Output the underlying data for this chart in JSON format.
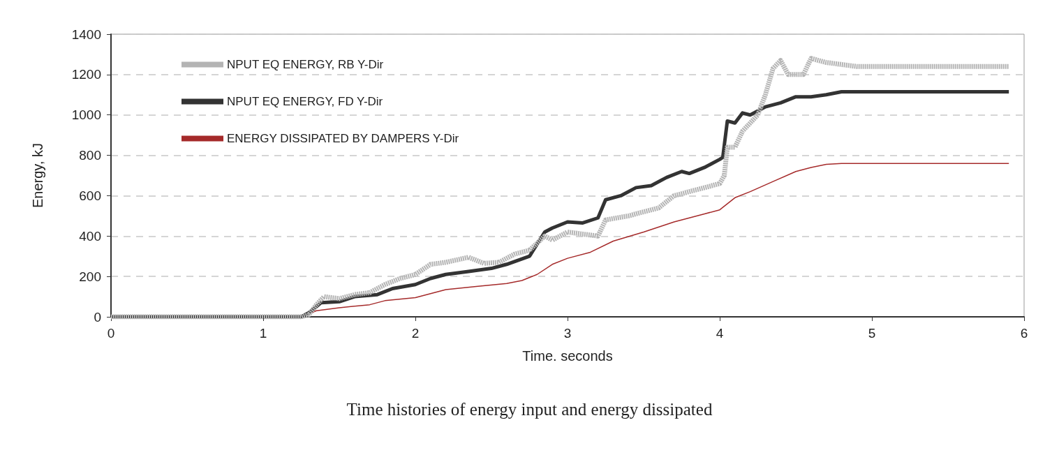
{
  "chart_data": {
    "type": "line",
    "title": "Time histories of energy input and energy dissipated",
    "xlabel": "Time. seconds",
    "ylabel": "Energy, kJ",
    "xlim": [
      0,
      6
    ],
    "xticks": [
      0,
      1,
      2,
      3,
      4,
      5,
      6
    ],
    "ylim": [
      0,
      1400
    ],
    "yticks": [
      0,
      200,
      400,
      600,
      800,
      1000,
      1200,
      1400
    ],
    "grid": "y",
    "legend": "top left",
    "marker": "none",
    "line_style": "solid",
    "series": [
      {
        "name": "NPUT EQ ENERGY, RB Y-Dir",
        "color": "#b4b4b4",
        "line_style": "dotted",
        "x": [
          0,
          1.25,
          1.3,
          1.35,
          1.4,
          1.5,
          1.6,
          1.7,
          1.8,
          1.9,
          2.0,
          2.1,
          2.2,
          2.35,
          2.45,
          2.55,
          2.65,
          2.75,
          2.85,
          2.9,
          3.0,
          3.1,
          3.2,
          3.25,
          3.4,
          3.5,
          3.6,
          3.7,
          3.8,
          3.9,
          4.0,
          4.03,
          4.05,
          4.1,
          4.15,
          4.2,
          4.25,
          4.3,
          4.35,
          4.4,
          4.45,
          4.55,
          4.6,
          4.7,
          4.8,
          4.9,
          5.9
        ],
        "values": [
          0,
          0,
          10,
          60,
          100,
          90,
          110,
          120,
          160,
          190,
          210,
          260,
          270,
          295,
          265,
          270,
          310,
          330,
          400,
          380,
          420,
          410,
          400,
          480,
          500,
          520,
          540,
          600,
          620,
          640,
          660,
          700,
          840,
          840,
          920,
          960,
          1000,
          1100,
          1230,
          1270,
          1200,
          1200,
          1280,
          1260,
          1250,
          1240,
          1240
        ]
      },
      {
        "name": "NPUT EQ ENERGY, FD Y-Dir",
        "color": "#333333",
        "x": [
          0,
          1.25,
          1.3,
          1.38,
          1.5,
          1.6,
          1.75,
          1.85,
          2.0,
          2.1,
          2.2,
          2.35,
          2.5,
          2.6,
          2.75,
          2.85,
          2.9,
          3.0,
          3.1,
          3.2,
          3.25,
          3.35,
          3.45,
          3.55,
          3.65,
          3.75,
          3.8,
          3.9,
          4.0,
          4.02,
          4.05,
          4.1,
          4.15,
          4.2,
          4.3,
          4.4,
          4.5,
          4.6,
          4.7,
          4.8,
          5.9
        ],
        "values": [
          0,
          0,
          20,
          70,
          75,
          100,
          110,
          140,
          160,
          190,
          210,
          225,
          240,
          260,
          300,
          420,
          440,
          470,
          465,
          490,
          580,
          600,
          640,
          650,
          690,
          720,
          710,
          740,
          780,
          790,
          970,
          960,
          1010,
          1000,
          1040,
          1060,
          1090,
          1090,
          1100,
          1115,
          1115
        ]
      },
      {
        "name": "ENERGY DISSIPATED BY DAMPERS Y-Dir",
        "color": "#a52a2a",
        "x": [
          0,
          1.25,
          1.35,
          1.5,
          1.7,
          1.8,
          2.0,
          2.2,
          2.4,
          2.6,
          2.7,
          2.8,
          2.9,
          3.0,
          3.15,
          3.3,
          3.5,
          3.7,
          3.9,
          4.0,
          4.1,
          4.2,
          4.35,
          4.5,
          4.6,
          4.7,
          4.8,
          5.9
        ],
        "values": [
          0,
          0,
          30,
          45,
          60,
          80,
          95,
          135,
          150,
          165,
          180,
          210,
          260,
          290,
          320,
          375,
          420,
          470,
          510,
          530,
          590,
          620,
          670,
          720,
          740,
          755,
          760,
          760
        ]
      }
    ]
  }
}
